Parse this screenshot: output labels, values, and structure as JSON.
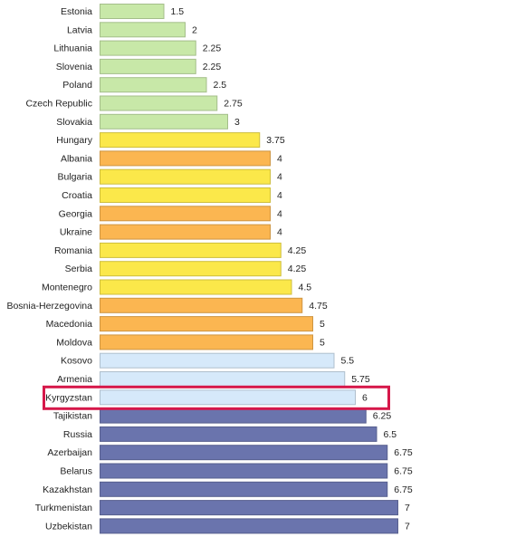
{
  "chart_data": {
    "type": "bar",
    "orientation": "horizontal",
    "categories": [
      "Estonia",
      "Latvia",
      "Lithuania",
      "Slovenia",
      "Poland",
      "Czech Republic",
      "Slovakia",
      "Hungary",
      "Albania",
      "Bulgaria",
      "Croatia",
      "Georgia",
      "Ukraine",
      "Romania",
      "Serbia",
      "Montenegro",
      "Bosnia-Herzegovina",
      "Macedonia",
      "Moldova",
      "Kosovo",
      "Armenia",
      "Kyrgyzstan",
      "Tajikistan",
      "Russia",
      "Azerbaijan",
      "Belarus",
      "Kazakhstan",
      "Turkmenistan",
      "Uzbekistan"
    ],
    "values": [
      1.5,
      2,
      2.25,
      2.25,
      2.5,
      2.75,
      3,
      3.75,
      4,
      4,
      4,
      4,
      4,
      4.25,
      4.25,
      4.5,
      4.75,
      5,
      5,
      5.5,
      5.75,
      6,
      6.25,
      6.5,
      6.75,
      6.75,
      6.75,
      7,
      7
    ],
    "value_labels": [
      "1.5",
      "2",
      "2.25",
      "2.25",
      "2.5",
      "2.75",
      "3",
      "3.75",
      "4",
      "4",
      "4",
      "4",
      "4",
      "4.25",
      "4.25",
      "4.5",
      "4.75",
      "5",
      "5",
      "5.5",
      "5.75",
      "6",
      "6.25",
      "6.5",
      "6.75",
      "6.75",
      "6.75",
      "7",
      "7"
    ],
    "bar_colors": [
      "#c8e8a8",
      "#c8e8a8",
      "#c8e8a8",
      "#c8e8a8",
      "#c8e8a8",
      "#c8e8a8",
      "#c8e8a8",
      "#fbe84a",
      "#fbb651",
      "#fbe84a",
      "#fbe84a",
      "#fbb651",
      "#fbb651",
      "#fbe84a",
      "#fbe84a",
      "#fbe84a",
      "#fbb651",
      "#fbb651",
      "#fbb651",
      "#d6e9fa",
      "#d6e9fa",
      "#d6e9fa",
      "#6a74ad",
      "#6a74ad",
      "#6a74ad",
      "#6a74ad",
      "#6a74ad",
      "#6a74ad",
      "#6a74ad"
    ],
    "highlighted": "Kyrgyzstan",
    "highlight_color": "#d6184a",
    "xlim": [
      0,
      7
    ],
    "title": "",
    "xlabel": "",
    "ylabel": "",
    "grid": false,
    "legend": "none"
  }
}
